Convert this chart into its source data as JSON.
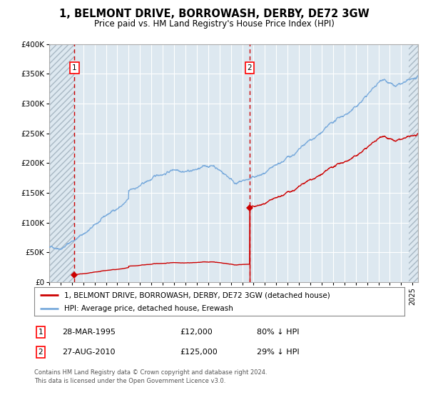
{
  "title": "1, BELMONT DRIVE, BORROWASH, DERBY, DE72 3GW",
  "subtitle": "Price paid vs. HM Land Registry's House Price Index (HPI)",
  "legend_line1": "1, BELMONT DRIVE, BORROWASH, DERBY, DE72 3GW (detached house)",
  "legend_line2": "HPI: Average price, detached house, Erewash",
  "annotation1_label": "1",
  "annotation1_date": "28-MAR-1995",
  "annotation1_price": "£12,000",
  "annotation1_hpi": "80% ↓ HPI",
  "annotation2_label": "2",
  "annotation2_date": "27-AUG-2010",
  "annotation2_price": "£125,000",
  "annotation2_hpi": "29% ↓ HPI",
  "footer": "Contains HM Land Registry data © Crown copyright and database right 2024.\nThis data is licensed under the Open Government Licence v3.0.",
  "hpi_color": "#7aabdc",
  "price_color": "#cc0000",
  "marker_color": "#cc0000",
  "vline_color": "#cc0000",
  "bg_color": "#dde8f0",
  "grid_color": "#ffffff",
  "ylim": [
    0,
    400000
  ],
  "sale1_x": 1995.23,
  "sale1_y": 12000,
  "sale2_x": 2010.65,
  "sale2_y": 125000,
  "xlim_left": 1993.0,
  "xlim_right": 2025.5
}
